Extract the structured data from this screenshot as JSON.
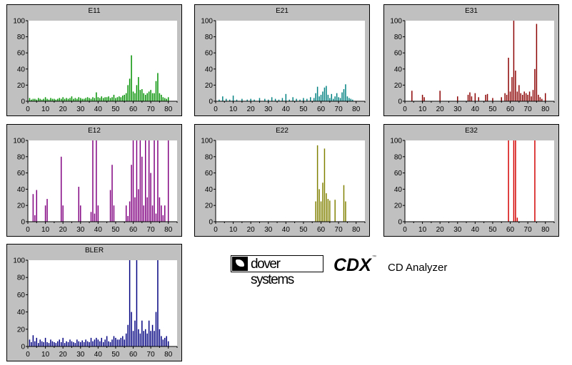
{
  "branding": {
    "company": "dover systems",
    "product": "CDX",
    "trademark": "™",
    "subtitle": "CD Analyzer"
  },
  "chart_data": [
    {
      "type": "bar",
      "title": "E11",
      "color": "#009000",
      "xlim": [
        0,
        85
      ],
      "ylim": [
        0,
        100
      ],
      "xticks": [
        "0",
        "10",
        "20",
        "30",
        "40",
        "50",
        "60",
        "70",
        "80"
      ],
      "yticks": [
        "0",
        "20",
        "40",
        "60",
        "80",
        "100"
      ],
      "x": [
        1,
        2,
        3,
        4,
        5,
        6,
        7,
        8,
        9,
        10,
        11,
        12,
        13,
        14,
        15,
        16,
        17,
        18,
        19,
        20,
        21,
        22,
        23,
        24,
        25,
        26,
        27,
        28,
        29,
        30,
        31,
        32,
        33,
        34,
        35,
        36,
        37,
        38,
        39,
        40,
        41,
        42,
        43,
        44,
        45,
        46,
        47,
        48,
        49,
        50,
        51,
        52,
        53,
        54,
        55,
        56,
        57,
        58,
        59,
        60,
        61,
        62,
        63,
        64,
        65,
        66,
        67,
        68,
        69,
        70,
        71,
        72,
        73,
        74,
        75,
        76,
        77,
        78,
        79,
        80
      ],
      "values": [
        4,
        2,
        3,
        3,
        2,
        4,
        3,
        2,
        3,
        5,
        3,
        2,
        4,
        3,
        3,
        2,
        3,
        4,
        3,
        5,
        3,
        4,
        3,
        4,
        6,
        3,
        4,
        3,
        5,
        4,
        3,
        3,
        4,
        5,
        4,
        3,
        5,
        4,
        11,
        5,
        4,
        6,
        4,
        5,
        5,
        6,
        4,
        5,
        8,
        4,
        5,
        6,
        5,
        7,
        8,
        10,
        20,
        28,
        57,
        12,
        10,
        20,
        30,
        14,
        15,
        10,
        8,
        10,
        12,
        14,
        10,
        10,
        25,
        35,
        10,
        8,
        5,
        4,
        3,
        5
      ]
    },
    {
      "type": "bar",
      "title": "E21",
      "color": "#008080",
      "xlim": [
        0,
        85
      ],
      "ylim": [
        0,
        100
      ],
      "xticks": [
        "0",
        "10",
        "20",
        "30",
        "40",
        "50",
        "60",
        "70",
        "80"
      ],
      "yticks": [
        "0",
        "20",
        "40",
        "60",
        "80",
        "100"
      ],
      "x": [
        2,
        4,
        6,
        8,
        10,
        12,
        15,
        18,
        20,
        22,
        25,
        28,
        30,
        32,
        34,
        36,
        38,
        40,
        42,
        44,
        46,
        48,
        50,
        52,
        54,
        56,
        57,
        58,
        59,
        60,
        61,
        62,
        63,
        64,
        65,
        66,
        67,
        68,
        69,
        70,
        71,
        72,
        73,
        74,
        75,
        76,
        77,
        78
      ],
      "values": [
        2,
        6,
        3,
        2,
        7,
        2,
        3,
        2,
        3,
        2,
        4,
        3,
        2,
        5,
        3,
        2,
        4,
        9,
        2,
        5,
        3,
        2,
        4,
        3,
        5,
        4,
        10,
        18,
        6,
        8,
        12,
        17,
        19,
        8,
        4,
        9,
        3,
        6,
        10,
        5,
        4,
        11,
        15,
        21,
        6,
        4,
        3,
        2
      ]
    },
    {
      "type": "bar",
      "title": "E31",
      "color": "#8b0000",
      "xlim": [
        0,
        85
      ],
      "ylim": [
        0,
        100
      ],
      "xticks": [
        "0",
        "10",
        "20",
        "30",
        "40",
        "50",
        "60",
        "70",
        "80"
      ],
      "yticks": [
        "0",
        "20",
        "40",
        "60",
        "80",
        "100"
      ],
      "x": [
        4,
        10,
        11,
        20,
        30,
        36,
        37,
        38,
        40,
        42,
        46,
        47,
        50,
        55,
        57,
        58,
        59,
        60,
        61,
        62,
        63,
        64,
        65,
        66,
        67,
        68,
        69,
        70,
        71,
        72,
        73,
        74,
        75,
        76,
        77,
        78,
        80
      ],
      "values": [
        13,
        8,
        5,
        13,
        6,
        8,
        11,
        6,
        10,
        5,
        8,
        9,
        4,
        5,
        10,
        8,
        54,
        12,
        30,
        100,
        38,
        12,
        20,
        10,
        8,
        12,
        10,
        8,
        12,
        6,
        14,
        40,
        96,
        8,
        5,
        3,
        10
      ]
    },
    {
      "type": "bar",
      "title": "E12",
      "color": "#800080",
      "xlim": [
        0,
        85
      ],
      "ylim": [
        0,
        100
      ],
      "xticks": [
        "0",
        "10",
        "20",
        "30",
        "40",
        "50",
        "60",
        "70",
        "80"
      ],
      "yticks": [
        "0",
        "20",
        "40",
        "60",
        "80",
        "100"
      ],
      "x": [
        3,
        4,
        5,
        10,
        11,
        19,
        20,
        29,
        30,
        36,
        37,
        38,
        39,
        40,
        47,
        48,
        49,
        56,
        57,
        58,
        59,
        60,
        61,
        62,
        63,
        64,
        65,
        66,
        67,
        68,
        69,
        70,
        71,
        72,
        73,
        74,
        75,
        76,
        77,
        78,
        80
      ],
      "values": [
        34,
        8,
        39,
        20,
        28,
        80,
        20,
        43,
        20,
        12,
        100,
        10,
        100,
        20,
        39,
        70,
        20,
        20,
        7,
        25,
        70,
        100,
        30,
        100,
        40,
        100,
        80,
        20,
        100,
        30,
        100,
        60,
        20,
        100,
        10,
        100,
        30,
        20,
        8,
        20,
        100
      ]
    },
    {
      "type": "bar",
      "title": "E22",
      "color": "#808000",
      "xlim": [
        0,
        85
      ],
      "ylim": [
        0,
        100
      ],
      "xticks": [
        "0",
        "10",
        "20",
        "30",
        "40",
        "50",
        "60",
        "70",
        "80"
      ],
      "yticks": [
        "0",
        "20",
        "40",
        "60",
        "80",
        "100"
      ],
      "x": [
        57,
        58,
        59,
        60,
        61,
        62,
        63,
        64,
        65,
        68,
        73,
        74
      ],
      "values": [
        25,
        94,
        40,
        25,
        48,
        90,
        35,
        28,
        26,
        27,
        45,
        25
      ]
    },
    {
      "type": "bar",
      "title": "E32",
      "color": "#d40000",
      "xlim": [
        0,
        85
      ],
      "ylim": [
        0,
        100
      ],
      "xticks": [
        "0",
        "10",
        "20",
        "30",
        "40",
        "50",
        "60",
        "70",
        "80"
      ],
      "yticks": [
        "0",
        "20",
        "40",
        "60",
        "80",
        "100"
      ],
      "x": [
        59,
        62,
        63,
        64,
        74
      ],
      "values": [
        100,
        100,
        100,
        5,
        100
      ]
    },
    {
      "type": "bar",
      "title": "BLER",
      "color": "#000080",
      "xlim": [
        0,
        85
      ],
      "ylim": [
        0,
        100
      ],
      "xticks": [
        "0",
        "10",
        "20",
        "30",
        "40",
        "50",
        "60",
        "70",
        "80"
      ],
      "yticks": [
        "0",
        "20",
        "40",
        "60",
        "80",
        "100"
      ],
      "x": [
        1,
        2,
        3,
        4,
        5,
        6,
        7,
        8,
        9,
        10,
        11,
        12,
        13,
        14,
        15,
        16,
        17,
        18,
        19,
        20,
        21,
        22,
        23,
        24,
        25,
        26,
        27,
        28,
        29,
        30,
        31,
        32,
        33,
        34,
        35,
        36,
        37,
        38,
        39,
        40,
        41,
        42,
        43,
        44,
        45,
        46,
        47,
        48,
        49,
        50,
        51,
        52,
        53,
        54,
        55,
        56,
        57,
        58,
        59,
        60,
        61,
        62,
        63,
        64,
        65,
        66,
        67,
        68,
        69,
        70,
        71,
        72,
        73,
        74,
        75,
        76,
        77,
        78,
        79,
        80
      ],
      "values": [
        8,
        5,
        13,
        6,
        10,
        4,
        8,
        6,
        5,
        10,
        5,
        4,
        8,
        6,
        5,
        4,
        6,
        8,
        5,
        10,
        4,
        6,
        5,
        8,
        6,
        5,
        4,
        8,
        6,
        5,
        7,
        5,
        8,
        6,
        5,
        10,
        6,
        8,
        10,
        8,
        6,
        10,
        5,
        8,
        12,
        6,
        5,
        8,
        12,
        10,
        8,
        8,
        10,
        12,
        8,
        15,
        25,
        100,
        40,
        18,
        30,
        100,
        20,
        15,
        30,
        18,
        20,
        15,
        30,
        18,
        25,
        18,
        40,
        100,
        20,
        12,
        8,
        10,
        12,
        6
      ]
    }
  ]
}
